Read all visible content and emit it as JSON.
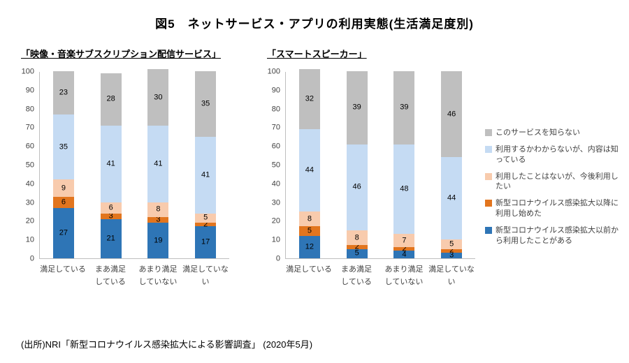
{
  "page": {
    "title": "図5　ネットサービス・アプリの利用実態(生活満足度別)",
    "source": "(出所)NRI「新型コロナウイルス感染拡大による影響調査」 (2020年5月)"
  },
  "colors": {
    "used_before": "#2E75B6",
    "started_after_covid": "#E2751E",
    "want_to_use_future": "#F8CBAD",
    "know_content_only": "#C5DBF3",
    "dont_know_service": "#BFBFBF"
  },
  "legend": [
    {
      "label": "このサービスを知らない",
      "color": "#BFBFBF"
    },
    {
      "label": "利用するかわからないが、内容は知っている",
      "color": "#C5DBF3"
    },
    {
      "label": "利用したことはないが、今後利用したい",
      "color": "#F8CBAD"
    },
    {
      "label": "新型コロナウイルス感染拡大以降に利用し始めた",
      "color": "#E2751E"
    },
    {
      "label": "新型コロナウイルス感染拡大以前から利用したことがある",
      "color": "#2E75B6"
    }
  ],
  "chart_data": [
    {
      "type": "bar",
      "stacked": true,
      "title": "「映像・音楽サブスクリプション配信サービス」",
      "categories": [
        "満足している",
        "まあ満足\nしている",
        "あまり満足\nしていない",
        "満足していない"
      ],
      "ylim": [
        0,
        100
      ],
      "ytick_step": 10,
      "grid": false,
      "series": [
        {
          "name": "新型コロナウイルス感染拡大以前から利用したことがある",
          "color": "#2E75B6",
          "values": [
            27,
            21,
            19,
            17
          ]
        },
        {
          "name": "新型コロナウイルス感染拡大以降に利用し始めた",
          "color": "#E2751E",
          "values": [
            6,
            3,
            3,
            2
          ]
        },
        {
          "name": "利用したことはないが、今後利用したい",
          "color": "#F8CBAD",
          "values": [
            9,
            6,
            8,
            5
          ]
        },
        {
          "name": "利用するかわからないが、内容は知っている",
          "color": "#C5DBF3",
          "values": [
            35,
            41,
            41,
            41
          ]
        },
        {
          "name": "このサービスを知らない",
          "color": "#BFBFBF",
          "values": [
            23,
            28,
            30,
            35
          ]
        }
      ]
    },
    {
      "type": "bar",
      "stacked": true,
      "title": "「スマートスピーカー」",
      "categories": [
        "満足している",
        "まあ満足\nしている",
        "あまり満足\nしていない",
        "満足していない"
      ],
      "ylim": [
        0,
        100
      ],
      "ytick_step": 10,
      "grid": false,
      "series": [
        {
          "name": "新型コロナウイルス感染拡大以前から利用したことがある",
          "color": "#2E75B6",
          "values": [
            12,
            5,
            4,
            3
          ]
        },
        {
          "name": "新型コロナウイルス感染拡大以降に利用し始めた",
          "color": "#E2751E",
          "values": [
            5,
            2,
            2,
            2
          ]
        },
        {
          "name": "利用したことはないが、今後利用したい",
          "color": "#F8CBAD",
          "values": [
            8,
            8,
            7,
            5
          ]
        },
        {
          "name": "利用するかわからないが、内容は知っている",
          "color": "#C5DBF3",
          "values": [
            44,
            46,
            48,
            44
          ]
        },
        {
          "name": "このサービスを知らない",
          "color": "#BFBFBF",
          "values": [
            32,
            39,
            39,
            46
          ]
        }
      ]
    }
  ]
}
